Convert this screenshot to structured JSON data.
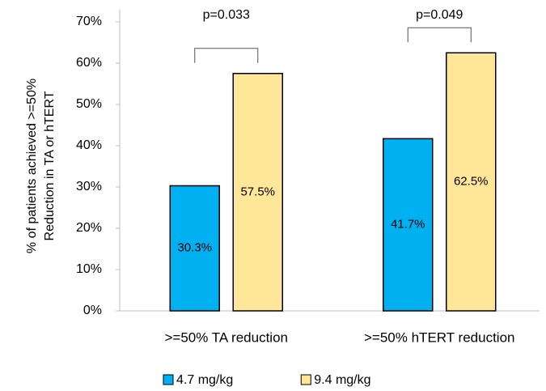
{
  "chart_data": {
    "type": "bar",
    "y_label": [
      "% of patients achieved >=50%",
      "Reduction in TA or hTERT"
    ],
    "categories": [
      ">=50% TA reduction",
      ">=50% hTERT reduction"
    ],
    "series": [
      {
        "name": "4.7 mg/kg",
        "color": "#00b0f0",
        "values": [
          30.3,
          41.7
        ],
        "value_labels": [
          "30.3%",
          "41.7%"
        ]
      },
      {
        "name": "9.4 mg/kg",
        "color": "#ffe699",
        "values": [
          57.5,
          62.5
        ],
        "value_labels": [
          "57.5%",
          "62.5%"
        ]
      }
    ],
    "annotations": [
      "p=0.033",
      "p=0.049"
    ],
    "ylim": [
      0,
      70
    ],
    "yticks": [
      {
        "value": 0,
        "label": "0%"
      },
      {
        "value": 10,
        "label": "10%"
      },
      {
        "value": 20,
        "label": "20%"
      },
      {
        "value": 30,
        "label": "30%"
      },
      {
        "value": 40,
        "label": "40%"
      },
      {
        "value": 50,
        "label": "50%"
      },
      {
        "value": 60,
        "label": "60%"
      },
      {
        "value": 70,
        "label": "70%"
      }
    ],
    "grid": false,
    "legend": "bottom"
  }
}
